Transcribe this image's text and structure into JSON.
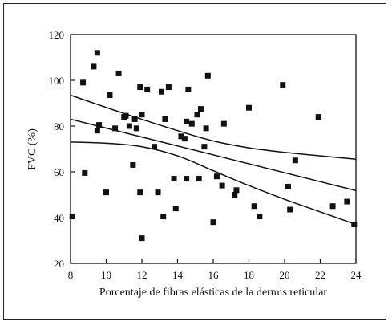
{
  "chart_data": {
    "type": "scatter",
    "title": "",
    "xlabel": "Porcentaje de fibras elásticas de la dermis reticular",
    "ylabel": "FVC (%)",
    "xlim": [
      8,
      24
    ],
    "ylim": [
      20,
      120
    ],
    "xticks": [
      8,
      10,
      12,
      14,
      16,
      18,
      20,
      22,
      24
    ],
    "yticks": [
      20,
      40,
      60,
      80,
      100,
      120
    ],
    "grid": false,
    "colors": {
      "points": "#111111",
      "lines": "#111111",
      "frame": "#222222"
    },
    "points": [
      [
        8.1,
        40.5
      ],
      [
        8.7,
        99
      ],
      [
        8.8,
        59.5
      ],
      [
        9.3,
        106
      ],
      [
        9.5,
        78
      ],
      [
        9.5,
        112
      ],
      [
        9.6,
        80.5
      ],
      [
        10.0,
        51
      ],
      [
        10.2,
        93.5
      ],
      [
        10.5,
        79
      ],
      [
        10.7,
        103
      ],
      [
        11.0,
        84
      ],
      [
        11.1,
        84.5
      ],
      [
        11.3,
        80
      ],
      [
        11.5,
        63
      ],
      [
        11.6,
        83
      ],
      [
        11.7,
        79
      ],
      [
        11.9,
        97
      ],
      [
        11.9,
        51
      ],
      [
        12.0,
        85
      ],
      [
        12.0,
        31
      ],
      [
        12.3,
        96
      ],
      [
        12.7,
        71
      ],
      [
        12.9,
        51
      ],
      [
        13.1,
        95
      ],
      [
        13.2,
        40.5
      ],
      [
        13.3,
        83
      ],
      [
        13.5,
        97
      ],
      [
        13.8,
        57
      ],
      [
        13.9,
        44
      ],
      [
        14.2,
        75.5
      ],
      [
        14.4,
        74.5
      ],
      [
        14.5,
        82
      ],
      [
        14.5,
        57
      ],
      [
        14.6,
        96
      ],
      [
        14.8,
        81
      ],
      [
        15.1,
        85
      ],
      [
        15.2,
        57
      ],
      [
        15.3,
        87.5
      ],
      [
        15.5,
        71
      ],
      [
        15.6,
        79
      ],
      [
        15.7,
        102
      ],
      [
        16.0,
        38
      ],
      [
        16.2,
        58
      ],
      [
        16.5,
        54
      ],
      [
        16.6,
        81
      ],
      [
        17.2,
        50
      ],
      [
        17.3,
        52
      ],
      [
        18.0,
        88
      ],
      [
        18.3,
        45
      ],
      [
        18.6,
        40.5
      ],
      [
        19.9,
        98
      ],
      [
        20.2,
        53.5
      ],
      [
        20.3,
        43.5
      ],
      [
        20.6,
        65
      ],
      [
        21.9,
        84
      ],
      [
        22.7,
        45
      ],
      [
        23.5,
        47
      ],
      [
        23.9,
        37
      ]
    ],
    "regression": {
      "intercept_at_x8": 83,
      "slope": -1.95,
      "x_range": [
        8,
        24
      ]
    },
    "confidence_band": {
      "upper": [
        [
          8,
          93.5
        ],
        [
          11,
          85.5
        ],
        [
          14,
          78
        ],
        [
          16,
          73.5
        ],
        [
          18,
          70.5
        ],
        [
          20,
          68.5
        ],
        [
          22,
          67
        ],
        [
          24,
          65.5
        ]
      ],
      "lower": [
        [
          8,
          73
        ],
        [
          10,
          72.5
        ],
        [
          12,
          71
        ],
        [
          14,
          67
        ],
        [
          16,
          60.5
        ],
        [
          18,
          54
        ],
        [
          20,
          48
        ],
        [
          22,
          42.5
        ],
        [
          24,
          37
        ]
      ]
    }
  }
}
